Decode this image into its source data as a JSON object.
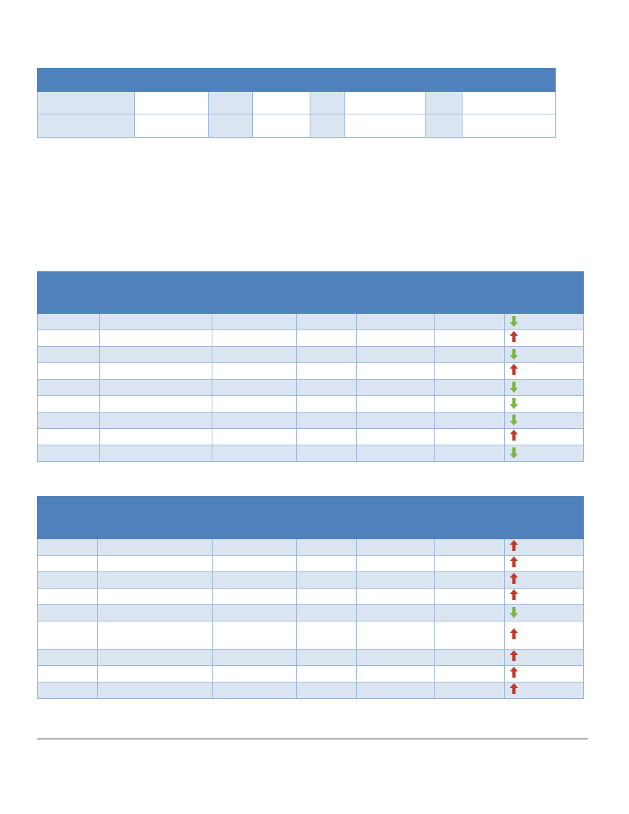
{
  "colors": {
    "header": "#4f81bd",
    "band": "#dbe5f1",
    "border": "#95b3d7",
    "arrow_up": "#c0392b",
    "arrow_down": "#7cb342"
  },
  "summary_table": {
    "header": "",
    "rows": [
      [
        "",
        "",
        "",
        "",
        "",
        "",
        "",
        ""
      ],
      [
        "",
        "",
        "",
        "",
        "",
        "",
        "",
        ""
      ]
    ]
  },
  "table_1": {
    "header": [
      "",
      "",
      "",
      "",
      "",
      "",
      ""
    ],
    "rows": [
      {
        "cells": [
          "",
          "",
          "",
          "",
          "",
          ""
        ],
        "trend": "down-arrow-icon"
      },
      {
        "cells": [
          "",
          "",
          "",
          "",
          "",
          ""
        ],
        "trend": "up-arrow-icon"
      },
      {
        "cells": [
          "",
          "",
          "",
          "",
          "",
          ""
        ],
        "trend": "down-arrow-icon"
      },
      {
        "cells": [
          "",
          "",
          "",
          "",
          "",
          ""
        ],
        "trend": "up-arrow-icon"
      },
      {
        "cells": [
          "",
          "",
          "",
          "",
          "",
          ""
        ],
        "trend": "down-arrow-icon"
      },
      {
        "cells": [
          "",
          "",
          "",
          "",
          "",
          ""
        ],
        "trend": "down-arrow-icon"
      },
      {
        "cells": [
          "",
          "",
          "",
          "",
          "",
          ""
        ],
        "trend": "down-arrow-icon"
      },
      {
        "cells": [
          "",
          "",
          "",
          "",
          "",
          ""
        ],
        "trend": "up-arrow-icon"
      },
      {
        "cells": [
          "",
          "",
          "",
          "",
          "",
          ""
        ],
        "trend": "down-arrow-icon"
      }
    ]
  },
  "table_2": {
    "header": [
      "",
      "",
      "",
      "",
      "",
      "",
      ""
    ],
    "rows": [
      {
        "cells": [
          "",
          "",
          "",
          "",
          "",
          ""
        ],
        "trend": "up-arrow-icon"
      },
      {
        "cells": [
          "",
          "",
          "",
          "",
          "",
          ""
        ],
        "trend": "up-arrow-icon"
      },
      {
        "cells": [
          "",
          "",
          "",
          "",
          "",
          ""
        ],
        "trend": "up-arrow-icon"
      },
      {
        "cells": [
          "",
          "",
          "",
          "",
          "",
          ""
        ],
        "trend": "up-arrow-icon"
      },
      {
        "cells": [
          "",
          "",
          "",
          "",
          "",
          ""
        ],
        "trend": "down-arrow-icon"
      },
      {
        "cells": [
          "",
          "",
          "",
          "",
          "",
          ""
        ],
        "trend": "up-arrow-icon"
      },
      {
        "cells": [
          "",
          "",
          "",
          "",
          "",
          ""
        ],
        "trend": "up-arrow-icon"
      },
      {
        "cells": [
          "",
          "",
          "",
          "",
          "",
          ""
        ],
        "trend": "up-arrow-icon"
      },
      {
        "cells": [
          "",
          "",
          "",
          "",
          "",
          ""
        ],
        "trend": "up-arrow-icon"
      }
    ]
  }
}
